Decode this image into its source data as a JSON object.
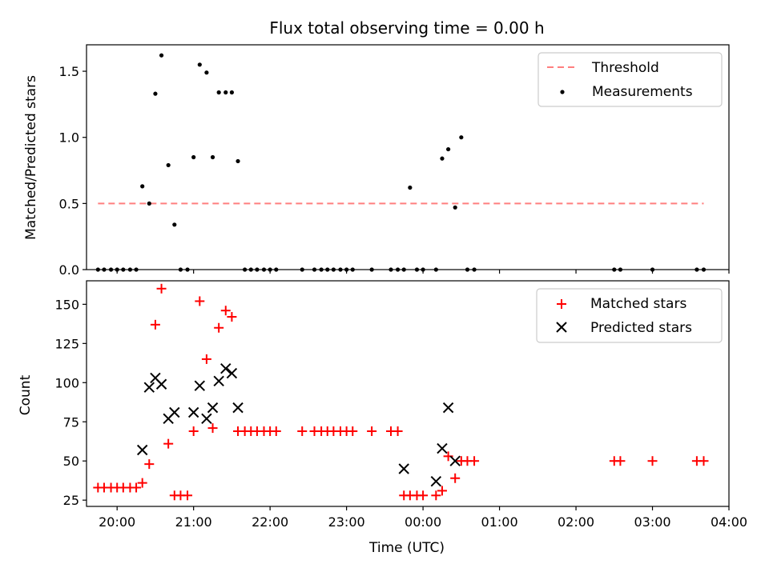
{
  "chart_data": [
    {
      "type": "scatter",
      "title": "Flux total observing time = 0.00 h",
      "ylabel": "Matched/Predicted stars",
      "xlabel": "",
      "xlim": [
        -0.4,
        8.0
      ],
      "ylim": [
        0.0,
        1.7
      ],
      "yticks": [
        0.0,
        0.5,
        1.0,
        1.5
      ],
      "ytick_labels": [
        "0.0",
        "0.5",
        "1.0",
        "1.5"
      ],
      "legend": "upper right",
      "series": [
        {
          "name": "Threshold",
          "kind": "line",
          "style": "dashed",
          "color": "#ff7f7f",
          "x": [
            -0.25,
            7.67
          ],
          "y": [
            0.5,
            0.5
          ]
        },
        {
          "name": "Measurements",
          "kind": "points",
          "marker": "dot",
          "color": "#000000",
          "x": [
            -0.25,
            -0.17,
            -0.08,
            0.0,
            0.08,
            0.17,
            0.25,
            0.33,
            0.42,
            0.5,
            0.58,
            0.67,
            0.75,
            0.83,
            0.92,
            1.0,
            1.08,
            1.17,
            1.25,
            1.33,
            1.42,
            1.5,
            1.58,
            1.67,
            1.75,
            1.83,
            1.92,
            2.0,
            2.08,
            2.42,
            2.58,
            2.67,
            2.75,
            2.83,
            2.92,
            3.0,
            3.08,
            3.33,
            3.58,
            3.67,
            3.75,
            3.83,
            3.92,
            4.0,
            4.17,
            4.25,
            4.33,
            4.42,
            4.5,
            4.58,
            4.67,
            6.5,
            6.58,
            7.0,
            7.58,
            7.67
          ],
          "y": [
            0.0,
            0.0,
            0.0,
            0.0,
            0.0,
            0.0,
            0.0,
            0.63,
            0.5,
            1.33,
            1.62,
            0.79,
            0.34,
            0.0,
            0.0,
            0.85,
            1.55,
            1.49,
            0.85,
            1.34,
            1.34,
            1.34,
            0.82,
            0.0,
            0.0,
            0.0,
            0.0,
            0.0,
            0.0,
            0.0,
            0.0,
            0.0,
            0.0,
            0.0,
            0.0,
            0.0,
            0.0,
            0.0,
            0.0,
            0.0,
            0.0,
            0.62,
            0.0,
            0.0,
            0.0,
            0.84,
            0.91,
            0.47,
            1.0,
            0.0,
            0.0,
            0.0,
            0.0,
            0.0,
            0.0,
            0.0
          ]
        }
      ]
    },
    {
      "type": "scatter",
      "title": "",
      "ylabel": "Count",
      "xlabel": "Time (UTC)",
      "xlim": [
        -0.4,
        8.0
      ],
      "ylim": [
        21,
        165
      ],
      "yticks": [
        25,
        50,
        75,
        100,
        125,
        150
      ],
      "ytick_labels": [
        "25",
        "50",
        "75",
        "100",
        "125",
        "150"
      ],
      "xticks": [
        0,
        1,
        2,
        3,
        4,
        5,
        6,
        7,
        8
      ],
      "xtick_labels": [
        "20:00",
        "21:00",
        "22:00",
        "23:00",
        "00:00",
        "01:00",
        "02:00",
        "03:00",
        "04:00"
      ],
      "legend": "upper right",
      "series": [
        {
          "name": "Matched stars",
          "kind": "points",
          "marker": "plus",
          "color": "#ff0000",
          "x": [
            -0.25,
            -0.17,
            -0.08,
            0.0,
            0.08,
            0.17,
            0.25,
            0.33,
            0.42,
            0.5,
            0.58,
            0.67,
            0.75,
            0.83,
            0.92,
            1.0,
            1.08,
            1.17,
            1.25,
            1.33,
            1.42,
            1.5,
            1.58,
            1.67,
            1.75,
            1.83,
            1.92,
            2.0,
            2.08,
            2.42,
            2.58,
            2.67,
            2.75,
            2.83,
            2.92,
            3.0,
            3.08,
            3.33,
            3.58,
            3.67,
            3.75,
            3.83,
            3.92,
            4.0,
            4.17,
            4.25,
            4.33,
            4.42,
            4.5,
            4.58,
            4.67,
            6.5,
            6.58,
            7.0,
            7.58,
            7.67
          ],
          "y": [
            33,
            33,
            33,
            33,
            33,
            33,
            33,
            36,
            48,
            137,
            160,
            61,
            28,
            28,
            28,
            69,
            152,
            115,
            71,
            135,
            146,
            142,
            69,
            69,
            69,
            69,
            69,
            69,
            69,
            69,
            69,
            69,
            69,
            69,
            69,
            69,
            69,
            69,
            69,
            69,
            28,
            28,
            28,
            28,
            28,
            31,
            53,
            39,
            50,
            50,
            50,
            50,
            50,
            50,
            50,
            50
          ]
        },
        {
          "name": "Predicted stars",
          "kind": "points",
          "marker": "x",
          "color": "#000000",
          "x": [
            0.33,
            0.42,
            0.5,
            0.58,
            0.67,
            0.75,
            1.0,
            1.08,
            1.17,
            1.25,
            1.33,
            1.42,
            1.5,
            1.58,
            3.75,
            4.17,
            4.25,
            4.33,
            4.42
          ],
          "y": [
            57,
            97,
            103,
            99,
            77,
            81,
            81,
            98,
            77,
            84,
            101,
            109,
            106,
            84,
            45,
            37,
            58,
            84,
            50
          ]
        }
      ]
    }
  ]
}
